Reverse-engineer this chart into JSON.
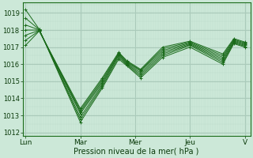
{
  "bg_color": "#cce8d8",
  "plot_bg_color": "#cce8d8",
  "grid_major_color": "#aacaba",
  "grid_minor_color": "#bbdacb",
  "line_color": "#1a6b1a",
  "xlabel": "Pression niveau de la mer( hPa )",
  "ylim": [
    1011.8,
    1019.6
  ],
  "yticks": [
    1012,
    1013,
    1014,
    1015,
    1016,
    1017,
    1018,
    1019
  ],
  "xtick_labels": [
    "Lun",
    "Mar",
    "Mer",
    "Jeu",
    "V"
  ],
  "xtick_positions": [
    0,
    1,
    2,
    3,
    4
  ],
  "series": [
    {
      "x": [
        0.0,
        0.25,
        1.0,
        1.4,
        1.7,
        1.85,
        2.1,
        2.5,
        3.0,
        3.6,
        3.8,
        4.0
      ],
      "y": [
        1019.2,
        1018.05,
        1012.6,
        1014.6,
        1016.3,
        1015.9,
        1015.2,
        1016.4,
        1017.0,
        1016.0,
        1017.2,
        1017.0
      ]
    },
    {
      "x": [
        0.0,
        0.25,
        1.0,
        1.4,
        1.7,
        1.85,
        2.1,
        2.5,
        3.0,
        3.6,
        3.8,
        4.0
      ],
      "y": [
        1018.7,
        1018.03,
        1012.75,
        1014.7,
        1016.4,
        1015.95,
        1015.3,
        1016.5,
        1017.1,
        1016.1,
        1017.25,
        1017.05
      ]
    },
    {
      "x": [
        0.0,
        0.25,
        1.0,
        1.4,
        1.7,
        1.85,
        2.1,
        2.5,
        3.0,
        3.6,
        3.8,
        4.0
      ],
      "y": [
        1018.3,
        1018.01,
        1012.9,
        1014.8,
        1016.5,
        1016.0,
        1015.4,
        1016.6,
        1017.15,
        1016.2,
        1017.3,
        1017.1
      ]
    },
    {
      "x": [
        0.0,
        0.25,
        1.0,
        1.4,
        1.7,
        1.85,
        2.1,
        2.5,
        3.0,
        3.6,
        3.8,
        4.0
      ],
      "y": [
        1018.0,
        1018.0,
        1013.1,
        1014.9,
        1016.55,
        1016.05,
        1015.5,
        1016.7,
        1017.2,
        1016.3,
        1017.35,
        1017.15
      ]
    },
    {
      "x": [
        0.0,
        0.25,
        1.0,
        1.4,
        1.7,
        1.85,
        2.1,
        2.5,
        3.0,
        3.6,
        3.8,
        4.0
      ],
      "y": [
        1017.7,
        1017.98,
        1013.2,
        1015.0,
        1016.6,
        1016.1,
        1015.6,
        1016.8,
        1017.25,
        1016.4,
        1017.4,
        1017.2
      ]
    },
    {
      "x": [
        0.0,
        0.25,
        1.0,
        1.4,
        1.7,
        1.85,
        2.1,
        2.5,
        3.0,
        3.6,
        3.8,
        4.0
      ],
      "y": [
        1017.4,
        1017.96,
        1013.3,
        1015.1,
        1016.65,
        1016.15,
        1015.65,
        1016.9,
        1017.3,
        1016.5,
        1017.45,
        1017.25
      ]
    },
    {
      "x": [
        0.0,
        0.25,
        1.0,
        1.4,
        1.7,
        1.85,
        2.1,
        2.5,
        3.0,
        3.6,
        3.8,
        4.0
      ],
      "y": [
        1017.1,
        1017.94,
        1013.4,
        1015.2,
        1016.7,
        1016.2,
        1015.7,
        1017.0,
        1017.35,
        1016.6,
        1017.5,
        1017.3
      ]
    }
  ]
}
